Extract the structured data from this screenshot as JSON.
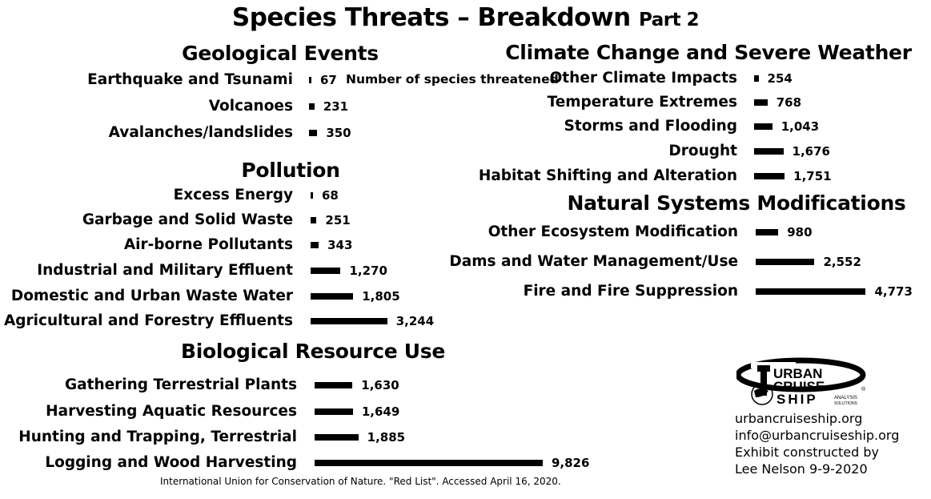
{
  "title": {
    "main": "Species Threats – Breakdown",
    "part": "Part 2"
  },
  "annotation": "Number of species threatened",
  "source": "International Union for Conservation of Nature. \"Red List\". Accessed April 16, 2020.",
  "logo": {
    "line1": "URBAN",
    "line2": "CRUISE",
    "line3": "SHIP",
    "tagline1": "ANALYSIS",
    "tagline2": "SOLUTIONS",
    "mark": "®"
  },
  "contact": {
    "website": "urbancruiseship.org",
    "email": "info@urbancruiseship.org",
    "credit": "Exhibit constructed by",
    "author": "Lee Nelson 9-9-2020"
  },
  "chart_data": [
    {
      "type": "bar",
      "orientation": "horizontal",
      "title": "Geological Events",
      "categories": [
        "Earthquake and Tsunami",
        "Volcanoes",
        "Avalanches/landslides"
      ],
      "values": [
        67,
        231,
        350
      ],
      "labels": [
        "67",
        "231",
        "350"
      ]
    },
    {
      "type": "bar",
      "orientation": "horizontal",
      "title": "Pollution",
      "categories": [
        "Excess Energy",
        "Garbage and Solid Waste",
        "Air-borne Pollutants",
        "Industrial and Military Effluent",
        "Domestic and Urban Waste Water",
        "Agricultural and Forestry Effluents"
      ],
      "values": [
        68,
        251,
        343,
        1270,
        1805,
        3244
      ],
      "labels": [
        "68",
        "251",
        "343",
        "1,270",
        "1,805",
        "3,244"
      ]
    },
    {
      "type": "bar",
      "orientation": "horizontal",
      "title": "Biological Resource Use",
      "categories": [
        "Gathering Terrestrial Plants",
        "Harvesting Aquatic Resources",
        "Hunting and Trapping, Terrestrial",
        "Logging and Wood Harvesting"
      ],
      "values": [
        1630,
        1649,
        1885,
        9826
      ],
      "labels": [
        "1,630",
        "1,649",
        "1,885",
        "9,826"
      ]
    },
    {
      "type": "bar",
      "orientation": "horizontal",
      "title": "Climate Change and Severe Weather",
      "categories": [
        "Other Climate Impacts",
        "Temperature Extremes",
        "Storms and Flooding",
        "Drought",
        "Habitat Shifting and Alteration"
      ],
      "values": [
        254,
        768,
        1043,
        1676,
        1751
      ],
      "labels": [
        "254",
        "768",
        "1,043",
        "1,676",
        "1,751"
      ]
    },
    {
      "type": "bar",
      "orientation": "horizontal",
      "title": "Natural Systems Modifications",
      "categories": [
        "Other Ecosystem Modification",
        "Dams and Water Management/Use",
        "Fire and Fire Suppression"
      ],
      "values": [
        980,
        2552,
        4773
      ],
      "labels": [
        "980",
        "2,552",
        "4,773"
      ]
    }
  ]
}
